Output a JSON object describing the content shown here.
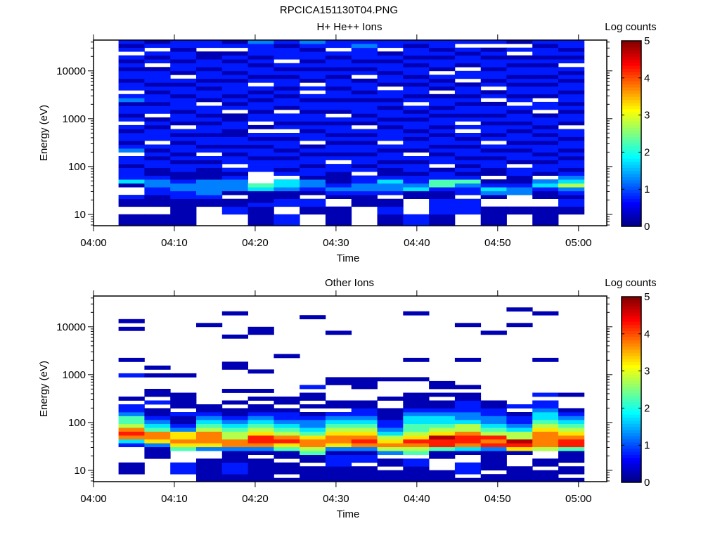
{
  "title": "RPCICA151130T04.PNG",
  "chart_data": [
    {
      "type": "heatmap",
      "title": "H+ He++ Ions",
      "xlabel": "Time",
      "ylabel": "Energy (eV)",
      "colorbar_label": "Log counts",
      "colorbar_ticks": [
        "0",
        "1",
        "2",
        "3",
        "4",
        "5"
      ],
      "clim": [
        0,
        5
      ],
      "xlim_minutes": [
        0,
        63.5
      ],
      "x_ticks_minutes": [
        0,
        10,
        20,
        30,
        40,
        50,
        60
      ],
      "x_tick_labels": [
        "04:00",
        "04:10",
        "04:20",
        "04:30",
        "04:40",
        "04:50",
        "05:00"
      ],
      "yscale": "log",
      "ylim": [
        5.8,
        44000
      ],
      "y_ticks": [
        10,
        100,
        1000,
        10000
      ],
      "y_tick_labels": [
        "10",
        "100",
        "1000",
        "10000"
      ],
      "time_bins": {
        "start_minute": 3.1,
        "step_minutes": 3.2,
        "count": 18
      },
      "energy_bins": {
        "log10_start": 0.76,
        "log10_step": 0.081,
        "count": 48
      },
      "columns": [
        "000..001..03111011.2101101.1011021.110110101.101",
        "000..0001122100110101.111010.110110101110.101.10",
        "0000000112210011010110101.011011101101.011011011",
        ".....0012222000101.101101101011.0110101101100.11",
        "...1100.0222101.1101011001100.101011101011010.101",
        "00000100034...1110110101 0.110110101.101101011120",
        "111..1100233.10110101101 1011.011010110101.111011",
        "...0011.0122011011010.110101101101 1.011010110121",
        "00000..012100011.10110101101.0110110110101101.11",
        ".....00012211.10110110101.010111010110.101011121",
        "0001100.1223100101101.1110101101011.011011010.11",
        "111....00321101101.011010110101.1011010110101101",
        "000111100144110.110101101011010110 0101.011010110",
        "...1111.1124101010110101 1.1011010110 11.01101.101",
        "00000..02310.00110101.1011010110 10.1011011010.10",
        "...00...2210011.011010110101101.101101011010 1.01",
        "00000..00132.0110101101010110 11.0110101101011011",
        "...0011012532101101011011.011010110110101.101011"
      ]
    },
    {
      "type": "heatmap",
      "title": "Other Ions",
      "xlabel": "Time",
      "ylabel": "Energy (eV)",
      "colorbar_label": "Log counts",
      "colorbar_ticks": [
        "0",
        "1",
        "2",
        "3",
        "4",
        "5"
      ],
      "clim": [
        0,
        5
      ],
      "xlim_minutes": [
        0,
        63.5
      ],
      "x_ticks_minutes": [
        0,
        10,
        20,
        30,
        40,
        50,
        60
      ],
      "x_tick_labels": [
        "04:00",
        "04:10",
        "04:20",
        "04:30",
        "04:40",
        "04:50",
        "05:00"
      ],
      "yscale": "log",
      "ylim": [
        5.8,
        44000
      ],
      "y_ticks": [
        10,
        100,
        1000,
        10000
      ],
      "y_tick_labels": [
        "10",
        "100",
        "1000",
        "10000"
      ],
      "time_bins": {
        "start_minute": 3.1,
        "step_minutes": 3.2,
        "count": 18
      },
      "energy_bins": {
        "log10_start": 0.76,
        "log10_step": 0.081,
        "count": 48
      },
      "columns": [
        "..000....13787544211.0.....1...0.......0.0",
        "......0002677432100.1.00...0.0",
        "..111...4676621001.0000....0",
        "000000..267775432100....................0",
        "0011100027755432100.0..0.....00......0.....0",
        "000000.0278865432100.0.0....0.........00",
        "0.000.0046875432110.00..........0",
        "0000.0045776432210 0.00.1.................0",
        "000011102677654321.00....00...........0",
        "0000.1102787654321100...000",
        "000.00.257653211000..0....0",
        "000011.4578654433210000...0....0...........0",
        "000...004889654332100.0.00",
        "0.111..0378875532211100.0......0........0",
        "00.000002878543221100.................0",
        "0000...06895532110.1....................0...0",
        "000.00..5777765433211.1........0...........0",
        "0.00.00048876543210...0"
      ]
    }
  ]
}
